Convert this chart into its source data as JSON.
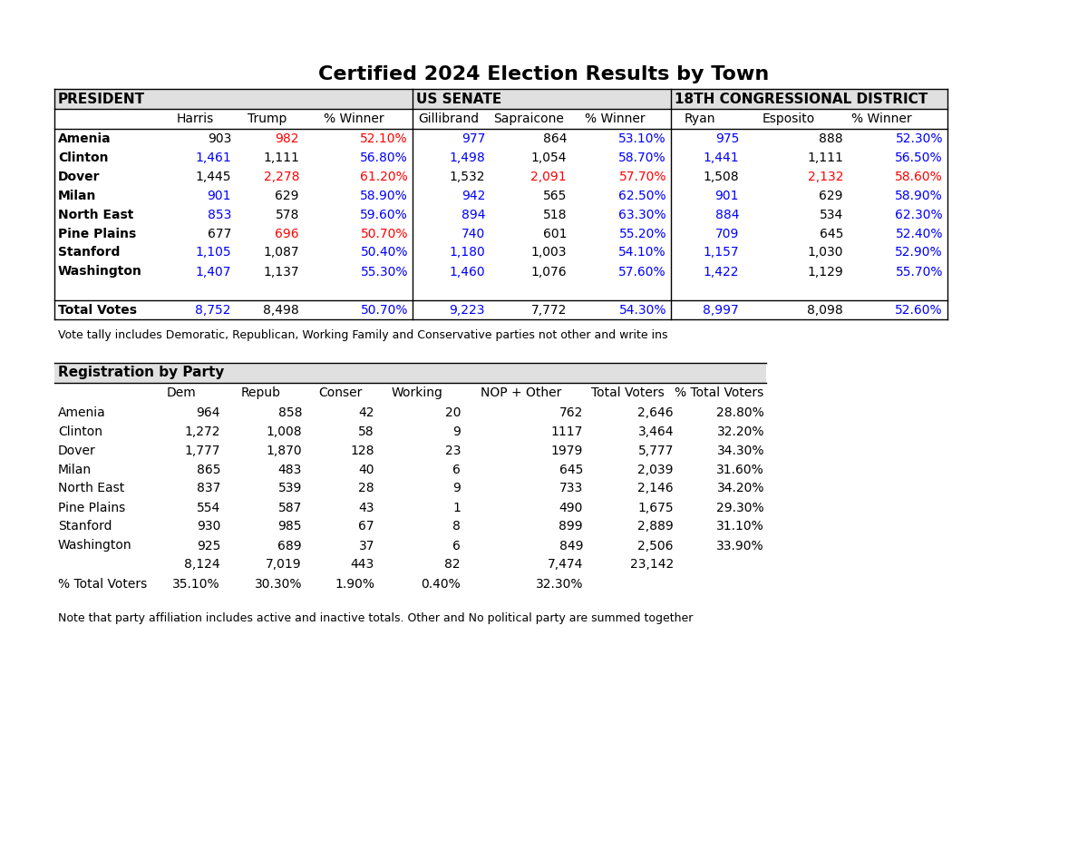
{
  "title": "Certified 2024 Election Results by Town",
  "background_color": "#ffffff",
  "section1_label": "PRESIDENT",
  "section2_label": "US SENATE",
  "section3_label": "18TH CONGRESSIONAL DISTRICT",
  "towns": [
    "Amenia",
    "Clinton",
    "Dover",
    "Milan",
    "North East",
    "Pine Plains",
    "Stanford",
    "Washington"
  ],
  "president_data": [
    [
      "903",
      "982",
      "52.10%"
    ],
    [
      "1,461",
      "1,111",
      "56.80%"
    ],
    [
      "1,445",
      "2,278",
      "61.20%"
    ],
    [
      "901",
      "629",
      "58.90%"
    ],
    [
      "853",
      "578",
      "59.60%"
    ],
    [
      "677",
      "696",
      "50.70%"
    ],
    [
      "1,105",
      "1,087",
      "50.40%"
    ],
    [
      "1,407",
      "1,137",
      "55.30%"
    ]
  ],
  "president_winner": [
    "Trump",
    "Harris",
    "Trump",
    "Harris",
    "Harris",
    "Trump",
    "Harris",
    "Harris"
  ],
  "senate_data": [
    [
      "977",
      "864",
      "53.10%"
    ],
    [
      "1,498",
      "1,054",
      "58.70%"
    ],
    [
      "1,532",
      "2,091",
      "57.70%"
    ],
    [
      "942",
      "565",
      "62.50%"
    ],
    [
      "894",
      "518",
      "63.30%"
    ],
    [
      "740",
      "601",
      "55.20%"
    ],
    [
      "1,180",
      "1,003",
      "54.10%"
    ],
    [
      "1,460",
      "1,076",
      "57.60%"
    ]
  ],
  "senate_winner": [
    "Gillibrand",
    "Gillibrand",
    "Sapraicone",
    "Gillibrand",
    "Gillibrand",
    "Gillibrand",
    "Gillibrand",
    "Gillibrand"
  ],
  "congress_data": [
    [
      "975",
      "888",
      "52.30%"
    ],
    [
      "1,441",
      "1,111",
      "56.50%"
    ],
    [
      "1,508",
      "2,132",
      "58.60%"
    ],
    [
      "901",
      "629",
      "58.90%"
    ],
    [
      "884",
      "534",
      "62.30%"
    ],
    [
      "709",
      "645",
      "52.40%"
    ],
    [
      "1,157",
      "1,030",
      "52.90%"
    ],
    [
      "1,422",
      "1,129",
      "55.70%"
    ]
  ],
  "congress_winner": [
    "Ryan",
    "Ryan",
    "Esposito",
    "Ryan",
    "Ryan",
    "Ryan",
    "Ryan",
    "Ryan"
  ],
  "total_pres": [
    "8,752",
    "8,498",
    "50.70%"
  ],
  "total_senate": [
    "9,223",
    "7,772",
    "54.30%"
  ],
  "total_congress": [
    "8,997",
    "8,098",
    "52.60%"
  ],
  "total_pres_winner": "Harris",
  "total_senate_winner": "Gillibrand",
  "total_congress_winner": "Ryan",
  "footnote1": "Vote tally includes Demoratic, Republican, Working Family and Conservative parties not other and write ins",
  "reg_section_label": "Registration by Party",
  "reg_towns": [
    "Amenia",
    "Clinton",
    "Dover",
    "Milan",
    "North East",
    "Pine Plains",
    "Stanford",
    "Washington"
  ],
  "reg_data": [
    [
      "964",
      "858",
      "42",
      "20",
      "762",
      "2,646",
      "28.80%"
    ],
    [
      "1,272",
      "1,008",
      "58",
      "9",
      "1117",
      "3,464",
      "32.20%"
    ],
    [
      "1,777",
      "1,870",
      "128",
      "23",
      "1979",
      "5,777",
      "34.30%"
    ],
    [
      "865",
      "483",
      "40",
      "6",
      "645",
      "2,039",
      "31.60%"
    ],
    [
      "837",
      "539",
      "28",
      "9",
      "733",
      "2,146",
      "34.20%"
    ],
    [
      "554",
      "587",
      "43",
      "1",
      "490",
      "1,675",
      "29.30%"
    ],
    [
      "930",
      "985",
      "67",
      "8",
      "899",
      "2,889",
      "31.10%"
    ],
    [
      "925",
      "689",
      "37",
      "6",
      "849",
      "2,506",
      "33.90%"
    ]
  ],
  "reg_totals": [
    "8,124",
    "7,019",
    "443",
    "82",
    "7,474",
    "23,142"
  ],
  "reg_pct": [
    "35.10%",
    "30.30%",
    "1.90%",
    "0.40%",
    "32.30%"
  ],
  "footnote2": "Note that party affiliation includes active and inactive totals. Other and No political party are summed together",
  "blue": "#0000ff",
  "red": "#ff0000",
  "black": "#000000",
  "header_bg": "#e0e0e0"
}
